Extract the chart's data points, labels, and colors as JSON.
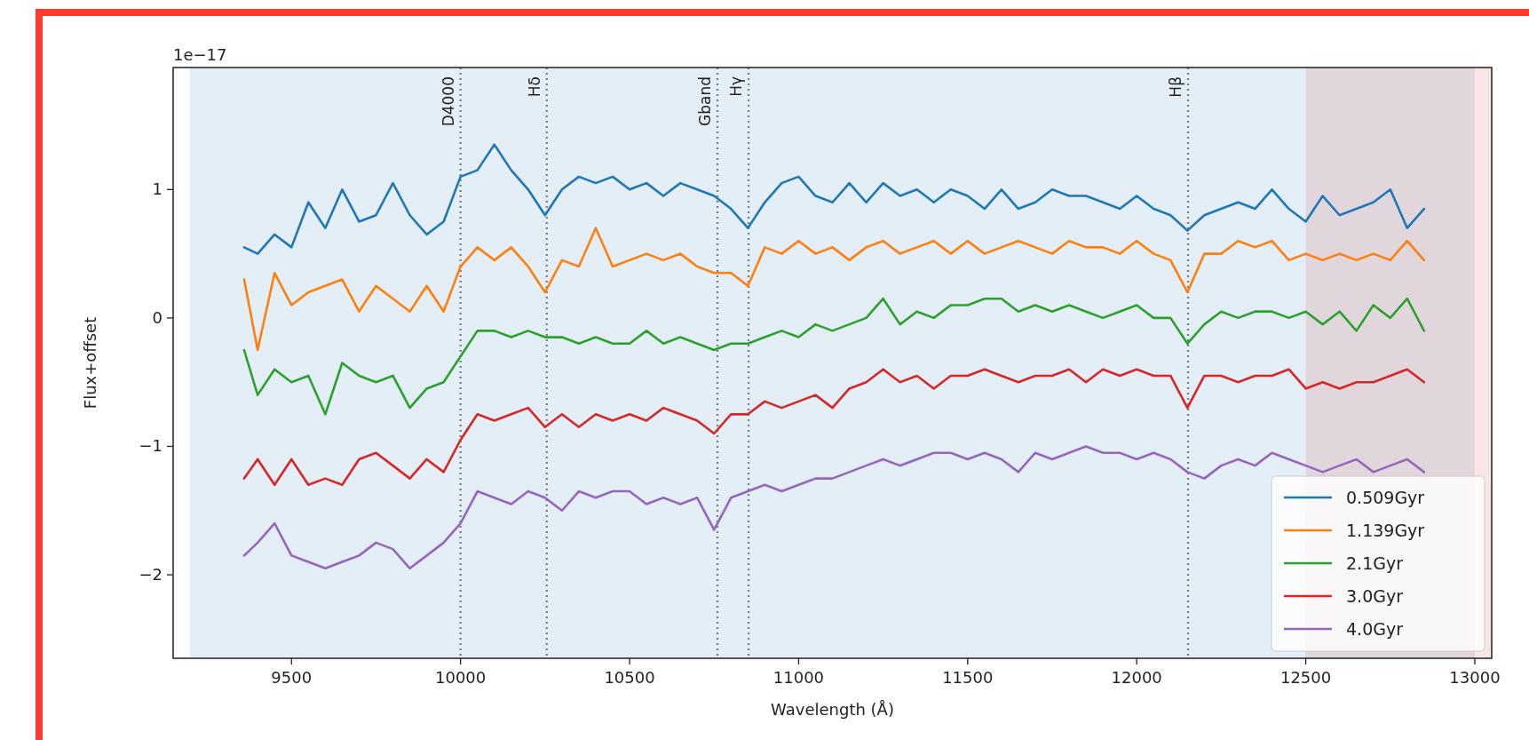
{
  "chart_data": {
    "type": "line",
    "xlabel": "Wavelength (Å)",
    "ylabel": "Flux+offset",
    "annotations": [
      "1e−17"
    ],
    "x": [
      9360,
      9400,
      9450,
      9500,
      9550,
      9600,
      9650,
      9700,
      9750,
      9800,
      9850,
      9900,
      9950,
      10000,
      10050,
      10100,
      10150,
      10200,
      10250,
      10300,
      10350,
      10400,
      10450,
      10500,
      10550,
      10600,
      10650,
      10700,
      10750,
      10800,
      10850,
      10900,
      10950,
      11000,
      11050,
      11100,
      11150,
      11200,
      11250,
      11300,
      11350,
      11400,
      11450,
      11500,
      11550,
      11600,
      11650,
      11700,
      11750,
      11800,
      11850,
      11900,
      11950,
      12000,
      12050,
      12100,
      12150,
      12200,
      12250,
      12300,
      12350,
      12400,
      12450,
      12500,
      12550,
      12600,
      12650,
      12700,
      12750,
      12800,
      12850
    ],
    "series": [
      {
        "name": "0.509Gyr",
        "color": "#1f77b4",
        "values": [
          0.55,
          0.5,
          0.65,
          0.55,
          0.9,
          0.7,
          1.0,
          0.75,
          0.8,
          1.05,
          0.8,
          0.65,
          0.75,
          1.1,
          1.15,
          1.35,
          1.15,
          1.0,
          0.8,
          1.0,
          1.1,
          1.05,
          1.1,
          1.0,
          1.05,
          0.95,
          1.05,
          1.0,
          0.95,
          0.85,
          0.7,
          0.9,
          1.05,
          1.1,
          0.95,
          0.9,
          1.05,
          0.9,
          1.05,
          0.95,
          1.0,
          0.9,
          1.0,
          0.95,
          0.85,
          1.0,
          0.85,
          0.9,
          1.0,
          0.95,
          0.95,
          0.9,
          0.85,
          0.95,
          0.85,
          0.8,
          0.68,
          0.8,
          0.85,
          0.9,
          0.85,
          1.0,
          0.85,
          0.75,
          0.95,
          0.8,
          0.85,
          0.9,
          1.0,
          0.7,
          0.85
        ]
      },
      {
        "name": "1.139Gyr",
        "color": "#ff7f0e",
        "values": [
          0.3,
          -0.25,
          0.35,
          0.1,
          0.2,
          0.25,
          0.3,
          0.05,
          0.25,
          0.15,
          0.05,
          0.25,
          0.05,
          0.4,
          0.55,
          0.45,
          0.55,
          0.4,
          0.2,
          0.45,
          0.4,
          0.7,
          0.4,
          0.45,
          0.5,
          0.45,
          0.5,
          0.4,
          0.35,
          0.35,
          0.25,
          0.55,
          0.5,
          0.6,
          0.5,
          0.55,
          0.45,
          0.55,
          0.6,
          0.5,
          0.55,
          0.6,
          0.5,
          0.6,
          0.5,
          0.55,
          0.6,
          0.55,
          0.5,
          0.6,
          0.55,
          0.55,
          0.5,
          0.6,
          0.5,
          0.45,
          0.2,
          0.5,
          0.5,
          0.6,
          0.55,
          0.6,
          0.45,
          0.5,
          0.45,
          0.5,
          0.45,
          0.5,
          0.45,
          0.6,
          0.45
        ]
      },
      {
        "name": "2.1Gyr",
        "color": "#2ca02c",
        "values": [
          -0.25,
          -0.6,
          -0.4,
          -0.5,
          -0.45,
          -0.75,
          -0.35,
          -0.45,
          -0.5,
          -0.45,
          -0.7,
          -0.55,
          -0.5,
          -0.3,
          -0.1,
          -0.1,
          -0.15,
          -0.1,
          -0.15,
          -0.15,
          -0.2,
          -0.15,
          -0.2,
          -0.2,
          -0.1,
          -0.2,
          -0.15,
          -0.2,
          -0.25,
          -0.2,
          -0.2,
          -0.15,
          -0.1,
          -0.15,
          -0.05,
          -0.1,
          -0.05,
          0.0,
          0.15,
          -0.05,
          0.05,
          0.0,
          0.1,
          0.1,
          0.15,
          0.15,
          0.05,
          0.1,
          0.05,
          0.1,
          0.05,
          0.0,
          0.05,
          0.1,
          0.0,
          0.0,
          -0.2,
          -0.05,
          0.05,
          0.0,
          0.05,
          0.05,
          0.0,
          0.05,
          -0.05,
          0.05,
          -0.1,
          0.1,
          0.0,
          0.15,
          -0.1
        ]
      },
      {
        "name": "3.0Gyr",
        "color": "#d62728",
        "values": [
          -1.25,
          -1.1,
          -1.3,
          -1.1,
          -1.3,
          -1.25,
          -1.3,
          -1.1,
          -1.05,
          -1.15,
          -1.25,
          -1.1,
          -1.2,
          -0.95,
          -0.75,
          -0.8,
          -0.75,
          -0.7,
          -0.85,
          -0.75,
          -0.85,
          -0.75,
          -0.8,
          -0.75,
          -0.8,
          -0.7,
          -0.75,
          -0.8,
          -0.9,
          -0.75,
          -0.75,
          -0.65,
          -0.7,
          -0.65,
          -0.6,
          -0.7,
          -0.55,
          -0.5,
          -0.4,
          -0.5,
          -0.45,
          -0.55,
          -0.45,
          -0.45,
          -0.4,
          -0.45,
          -0.5,
          -0.45,
          -0.45,
          -0.4,
          -0.5,
          -0.4,
          -0.45,
          -0.4,
          -0.45,
          -0.45,
          -0.7,
          -0.45,
          -0.45,
          -0.5,
          -0.45,
          -0.45,
          -0.4,
          -0.55,
          -0.5,
          -0.55,
          -0.5,
          -0.5,
          -0.45,
          -0.4,
          -0.5
        ]
      },
      {
        "name": "4.0Gyr",
        "color": "#9467bd",
        "values": [
          -1.85,
          -1.75,
          -1.6,
          -1.85,
          -1.9,
          -1.95,
          -1.9,
          -1.85,
          -1.75,
          -1.8,
          -1.95,
          -1.85,
          -1.75,
          -1.6,
          -1.35,
          -1.4,
          -1.45,
          -1.35,
          -1.4,
          -1.5,
          -1.35,
          -1.4,
          -1.35,
          -1.35,
          -1.45,
          -1.4,
          -1.45,
          -1.4,
          -1.65,
          -1.4,
          -1.35,
          -1.3,
          -1.35,
          -1.3,
          -1.25,
          -1.25,
          -1.2,
          -1.15,
          -1.1,
          -1.15,
          -1.1,
          -1.05,
          -1.05,
          -1.1,
          -1.05,
          -1.1,
          -1.2,
          -1.05,
          -1.1,
          -1.05,
          -1.0,
          -1.05,
          -1.05,
          -1.1,
          -1.05,
          -1.1,
          -1.2,
          -1.25,
          -1.15,
          -1.1,
          -1.15,
          -1.05,
          -1.1,
          -1.15,
          -1.2,
          -1.15,
          -1.1,
          -1.2,
          -1.15,
          -1.1,
          -1.2
        ]
      }
    ],
    "xlim": [
      9150,
      13050
    ],
    "xticks": [
      9500,
      10000,
      10500,
      11000,
      11500,
      12000,
      12500,
      13000
    ],
    "ylim": [
      -2.65,
      1.95
    ],
    "yticks": [
      -2,
      -1,
      0,
      1
    ],
    "ref_lines": [
      {
        "axis": "x",
        "value": 10000,
        "label": "D4000",
        "color": "#7f7f7f",
        "line_style": "dotted"
      },
      {
        "axis": "x",
        "value": 10255,
        "label": "Hδ",
        "color": "#7f7f7f",
        "line_style": "dotted"
      },
      {
        "axis": "x",
        "value": 10760,
        "label": "Gband",
        "color": "#7f7f7f",
        "line_style": "dotted"
      },
      {
        "axis": "x",
        "value": 10852,
        "label": "Hγ",
        "color": "#7f7f7f",
        "line_style": "dotted"
      },
      {
        "axis": "x",
        "value": 12152,
        "label": "Hβ",
        "color": "#7f7f7f",
        "line_style": "dotted"
      }
    ],
    "bands": [
      {
        "axis": "x",
        "from": 9200,
        "to": 13000,
        "color": "#1f77b4"
      },
      {
        "axis": "x",
        "from": 12500,
        "to": 13050,
        "color": "#d62728"
      }
    ],
    "legend": "bottom right",
    "grid": false,
    "line_style": "solid",
    "marker": "none"
  }
}
